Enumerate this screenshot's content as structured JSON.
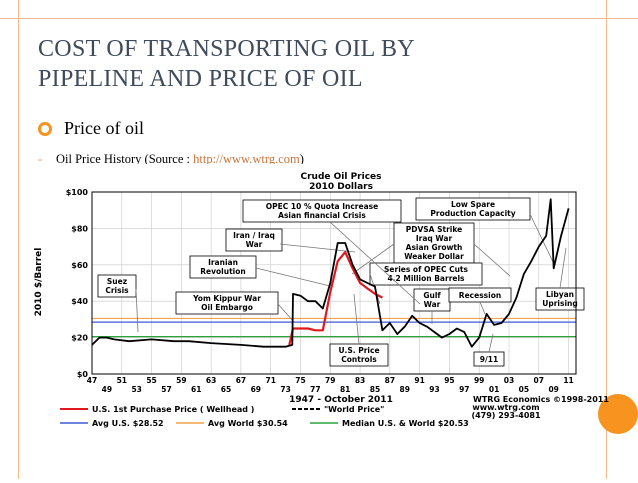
{
  "slide": {
    "title_line1": "COST OF TRANSPORTING OIL BY",
    "title_line2": "PIPELINE AND PRICE OF OIL",
    "bullet1": "Price of oil",
    "bullet2_text": "Oil Price History (Source : ",
    "bullet2_link": "http://www.wtrg.com",
    "bullet2_end": ")"
  },
  "colors": {
    "accent": "#f7931e",
    "frame": "#f3b98a",
    "title": "#3f4b5b",
    "red": "#e0191f",
    "blue": "#3b5bd6",
    "orange": "#f4a24a",
    "green": "#2aa33a"
  },
  "chart_data": {
    "type": "line",
    "title": "Crude Oil Prices",
    "subtitle": "2010 Dollars",
    "ylabel": "2010 $/Barrel",
    "xlabel": "1947 - October 2011",
    "ylim": [
      0,
      100
    ],
    "xlim": [
      1947,
      2012
    ],
    "yticks": [
      0,
      20,
      40,
      60,
      80,
      100
    ],
    "ytick_labels": [
      "$0",
      "$20",
      "$40",
      "$60",
      "$80",
      "$100"
    ],
    "xticks_top": [
      "47",
      "51",
      "55",
      "59",
      "63",
      "67",
      "71",
      "75",
      "79",
      "83",
      "87",
      "91",
      "95",
      "99",
      "03",
      "07",
      "11"
    ],
    "xticks_bottom": [
      "49",
      "53",
      "57",
      "61",
      "65",
      "69",
      "73",
      "77",
      "81",
      "85",
      "89",
      "93",
      "97",
      "01",
      "05",
      "09"
    ],
    "series": [
      {
        "name": "U.S. 1st Purchase Price ( Wellhead )",
        "color": "#e0191f",
        "x": [
          1973.5,
          1974,
          1975,
          1976,
          1977,
          1978,
          1979,
          1980,
          1981,
          1982,
          1983,
          1984,
          1985,
          1986
        ],
        "y": [
          16,
          25,
          25,
          25,
          24,
          24,
          45,
          62,
          67,
          58,
          50,
          47,
          44,
          42
        ]
      },
      {
        "name": "\"World Price\"",
        "color": "#000000",
        "x": [
          1947,
          1948,
          1949,
          1950,
          1952,
          1955,
          1958,
          1960,
          1963,
          1967,
          1970,
          1971,
          1972,
          1973,
          1973.9,
          1974,
          1975,
          1976,
          1977,
          1978,
          1979,
          1980,
          1981,
          1982,
          1983,
          1984,
          1985,
          1986,
          1987,
          1988,
          1989,
          1990,
          1991,
          1992,
          1993,
          1994,
          1995,
          1996,
          1997,
          1998,
          1999,
          2000,
          2001,
          2002,
          2003,
          2004,
          2005,
          2006,
          2007,
          2008,
          2008.6,
          2009,
          2010,
          2011
        ],
        "y": [
          16,
          20,
          20,
          19,
          18,
          19,
          18,
          18,
          17,
          16,
          15,
          15,
          15,
          15,
          16,
          44,
          43,
          40,
          40,
          36,
          50,
          72,
          72,
          60,
          52,
          50,
          48,
          24,
          28,
          22,
          26,
          32,
          28,
          26,
          23,
          20,
          22,
          25,
          23,
          15,
          20,
          33,
          27,
          28,
          33,
          42,
          55,
          62,
          70,
          76,
          96,
          58,
          76,
          91
        ]
      }
    ],
    "reference_lines": [
      {
        "name": "Avg U.S. $28.52",
        "value": 28.52,
        "color": "#3b5bd6"
      },
      {
        "name": "Avg World $30.54",
        "value": 30.54,
        "color": "#f4a24a"
      },
      {
        "name": "Median U.S. & World $20.53",
        "value": 20.53,
        "color": "#2aa33a"
      }
    ],
    "annotations": [
      "OPEC 10 % Quota Increase",
      "Asian financial Crisis",
      "Low Spare",
      "Production Capacity",
      "PDVSA Strike",
      "Iraq War",
      "Asian Growth",
      "Weaker Dollar",
      "Iran / Iraq",
      "War",
      "Iranian",
      "Revolution",
      "Series of OPEC Cuts",
      "4.2 Million Barrels",
      "Suez",
      "Crisis",
      "Yom Kippur War",
      "Oil Embargo",
      "Gulf",
      "War",
      "Recession",
      "Libyan",
      "Uprising",
      "U.S. Price",
      "Controls",
      "9/11"
    ],
    "footer": {
      "credit": "WTRG Economics ©1998-2011",
      "url": "www.wtrg.com",
      "phone": "(479) 293-4081"
    }
  }
}
